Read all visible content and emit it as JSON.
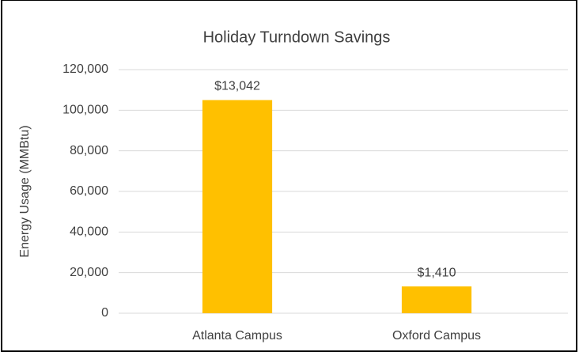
{
  "chart_data": {
    "type": "bar",
    "title": "Holiday Turndown Savings",
    "y_label": "Energy Usage (MMBtu)",
    "categories": [
      "Atlanta Campus",
      "Oxford Campus"
    ],
    "values": [
      105000,
      13200
    ],
    "color": "#ffc000",
    "annotations": [
      "$13,042",
      "$1,410"
    ],
    "ylim": [
      0,
      120000
    ],
    "yticks": [
      0,
      {
        "value": 20000,
        "label": "20,000"
      },
      {
        "value": 40000,
        "label": "40,000"
      },
      {
        "value": 60000,
        "label": "60,000"
      },
      {
        "value": 80000,
        "label": "80,000"
      },
      {
        "value": 100000,
        "label": "100,000"
      },
      {
        "value": 120000,
        "label": "120,000"
      }
    ],
    "grid": true
  }
}
